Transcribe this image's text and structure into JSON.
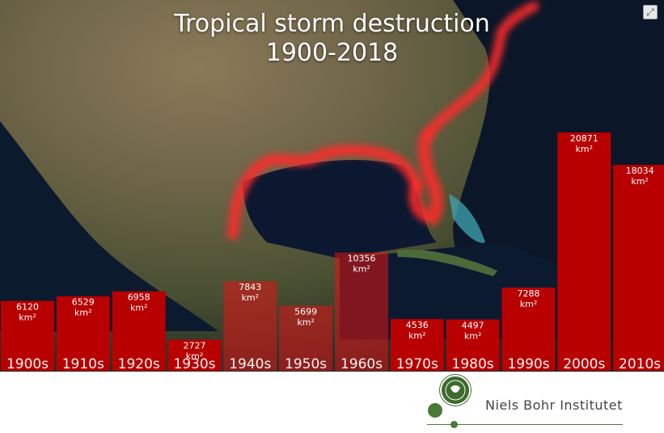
{
  "title": {
    "line1": "Tropical storm destruction",
    "line2": "1900-2018"
  },
  "fullscreen_icon": "expand-icon",
  "footer": {
    "institution": "Niels Bohr Institutet",
    "logo_icon": "niels-bohr-logo"
  },
  "colors": {
    "bar_fill": "#b80000",
    "bar_fill_translucent": "rgba(225,20,20,0.55)",
    "storm_glow": "#ff2a2a",
    "accent_green": "#4a7a35"
  },
  "chart_data": {
    "type": "bar",
    "title": "Tropical storm destruction 1900-2018",
    "categories": [
      "1900s",
      "1910s",
      "1920s",
      "1930s",
      "1940s",
      "1950s",
      "1960s",
      "1970s",
      "1980s",
      "1990s",
      "2000s",
      "2010s"
    ],
    "values": [
      6120,
      6529,
      6958,
      2727,
      7843,
      5699,
      10356,
      4536,
      4497,
      7288,
      20871,
      18034
    ],
    "value_labels": [
      "6120",
      "6529",
      "6958",
      "2727",
      "7843",
      "5699",
      "10356",
      "4536",
      "4497",
      "7288",
      "20871",
      "18034"
    ],
    "unit": "km²",
    "translucent": [
      false,
      false,
      false,
      false,
      true,
      true,
      true,
      false,
      false,
      false,
      false,
      false
    ],
    "ylim": [
      0,
      23000
    ],
    "grid": false,
    "legend": "none"
  }
}
